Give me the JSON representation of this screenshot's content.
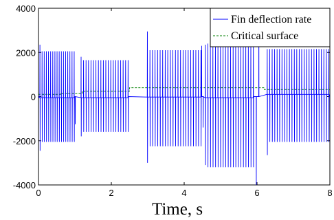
{
  "chart_data": {
    "type": "line",
    "xlabel": "Time, s",
    "ylabel": "",
    "xlim": [
      0,
      8
    ],
    "ylim": [
      -4000,
      4000
    ],
    "xticks": [
      0,
      2,
      4,
      6,
      8
    ],
    "yticks": [
      -4000,
      -2000,
      0,
      2000,
      4000
    ],
    "grid": false,
    "legend_position": "top-right",
    "series": [
      {
        "name": "Fin deflection rate",
        "color": "#0000ff",
        "style": "solid",
        "segments": [
          {
            "t0": 0.04,
            "t1": 0.98,
            "spikes": 17,
            "up_first": 2350,
            "up": 2050,
            "down_first": -2450,
            "down": -2050,
            "base": -50
          },
          {
            "t0": 1.17,
            "t1": 2.46,
            "spikes": 20,
            "up_first": 1800,
            "up": 1650,
            "down_first": -1800,
            "down": -1600,
            "base": -50
          },
          {
            "t0": 2.99,
            "t1": 4.46,
            "spikes": 22,
            "up_first": 2950,
            "up": 2100,
            "down_first": -3000,
            "down": -2250,
            "base": -20
          },
          {
            "t0": 4.58,
            "t1": 5.9,
            "spikes": 20,
            "up_first": 2350,
            "up": 2400,
            "down_first": -3100,
            "down": -3200,
            "base": -50
          },
          {
            "t0": 6.28,
            "t1": 7.97,
            "spikes": 26,
            "up_first": 2150,
            "up": 2150,
            "down_first": -2650,
            "down": -2050,
            "base": 100
          }
        ],
        "outliers": [
          {
            "t": 1.01,
            "v": -1250
          },
          {
            "t": 4.48,
            "v": 2300
          },
          {
            "t": 4.52,
            "v": -1400
          },
          {
            "t": 5.98,
            "v": -4000
          },
          {
            "t": 6.05,
            "v": 3700
          }
        ]
      },
      {
        "name": "Critical surface",
        "color": "#008000",
        "style": "dashed",
        "steps": [
          {
            "x0": 0.0,
            "x1": 0.6,
            "y": 100
          },
          {
            "x0": 0.6,
            "x1": 1.2,
            "y": 150
          },
          {
            "x0": 1.2,
            "x1": 2.5,
            "y": 250
          },
          {
            "x0": 2.5,
            "x1": 6.2,
            "y": 400
          },
          {
            "x0": 6.2,
            "x1": 8.0,
            "y": 320
          }
        ]
      }
    ]
  }
}
